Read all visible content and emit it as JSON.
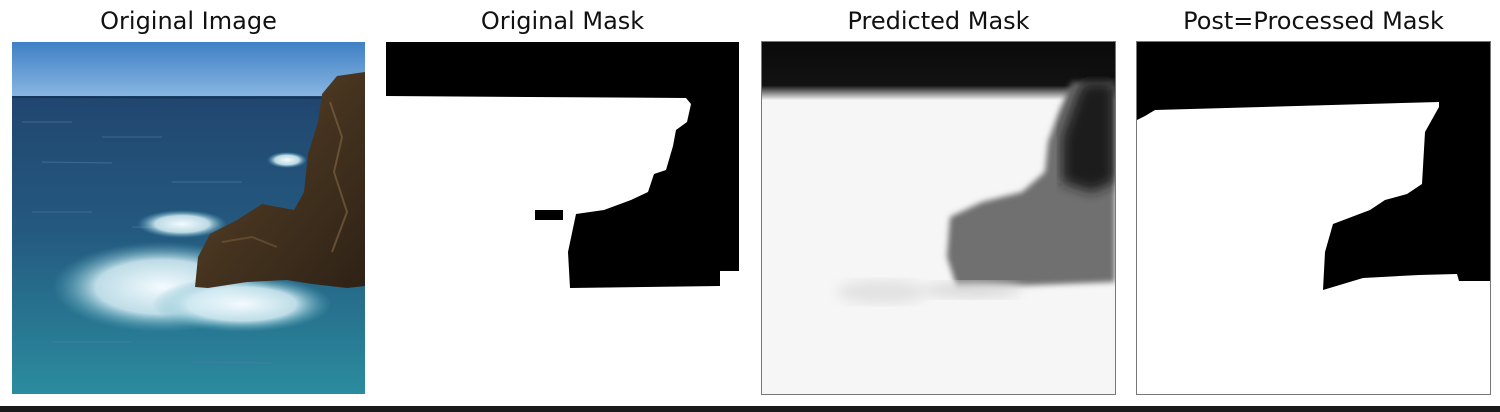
{
  "panels": [
    {
      "title": "Original Image"
    },
    {
      "title": "Original Mask"
    },
    {
      "title": "Predicted Mask"
    },
    {
      "title": "Post=Processed Mask"
    }
  ],
  "colors": {
    "sky": "#4f8fce",
    "sea_deep": "#1f4f7a",
    "sea_teal": "#2f7f95",
    "foam": "#e8f4f8",
    "rock": "#4a3826",
    "mask_fg": "#ffffff",
    "mask_bg": "#000000"
  }
}
